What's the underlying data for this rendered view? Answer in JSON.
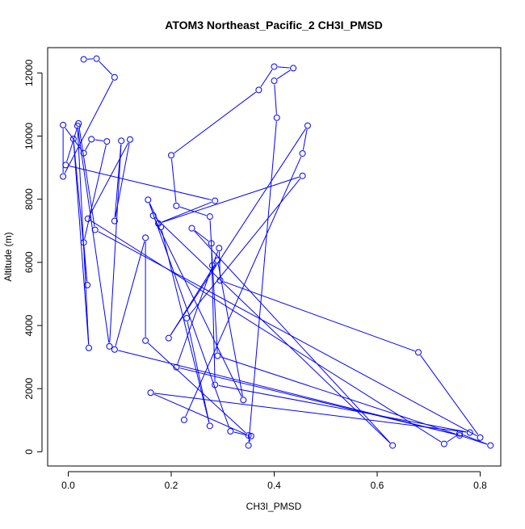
{
  "chart_data": {
    "type": "line",
    "title": "ATOM3 Northeast_Pacific_2 CH3I_PMSD",
    "xlabel": "CH3I_PMSD",
    "ylabel": "Altitude (m)",
    "xlim": [
      -0.04,
      0.84
    ],
    "ylim": [
      -450,
      12800
    ],
    "x_ticks": [
      0.0,
      0.2,
      0.4,
      0.6,
      0.8
    ],
    "x_tick_labels": [
      "0.0",
      "0.2",
      "0.4",
      "0.6",
      "0.8"
    ],
    "y_ticks": [
      0,
      2000,
      4000,
      6000,
      8000,
      10000,
      12000
    ],
    "y_tick_labels": [
      "0",
      "2000",
      "4000",
      "6000",
      "8000",
      "10000",
      "12000"
    ],
    "series": [
      {
        "color": "#0000ff",
        "marker": "open-circle",
        "points": [
          {
            "x": 0.03,
            "y": 12430
          },
          {
            "x": 0.055,
            "y": 12450
          },
          {
            "x": 0.09,
            "y": 11860
          },
          {
            "x": -0.01,
            "y": 8720
          },
          {
            "x": -0.01,
            "y": 10350
          },
          {
            "x": 0.03,
            "y": 9460
          },
          {
            "x": 0.045,
            "y": 9900
          },
          {
            "x": 0.075,
            "y": 9830
          },
          {
            "x": 0.03,
            "y": 6630
          },
          {
            "x": 0.037,
            "y": 5280
          },
          {
            "x": 0.01,
            "y": 9910
          },
          {
            "x": 0.04,
            "y": 3290
          },
          {
            "x": 0.018,
            "y": 10320
          },
          {
            "x": 0.08,
            "y": 3340
          },
          {
            "x": 0.103,
            "y": 9850
          },
          {
            "x": 0.09,
            "y": 7310
          },
          {
            "x": 0.12,
            "y": 9890
          },
          {
            "x": 0.038,
            "y": 7380
          },
          {
            "x": 0.73,
            "y": 250
          },
          {
            "x": 0.76,
            "y": 580
          },
          {
            "x": 0.82,
            "y": 200
          },
          {
            "x": 0.29,
            "y": 3040
          },
          {
            "x": 0.275,
            "y": 7450
          },
          {
            "x": 0.21,
            "y": 7790
          },
          {
            "x": 0.2,
            "y": 9390
          },
          {
            "x": 0.37,
            "y": 11460
          },
          {
            "x": 0.4,
            "y": 12200
          },
          {
            "x": 0.437,
            "y": 12150
          },
          {
            "x": 0.4,
            "y": 11750
          },
          {
            "x": 0.405,
            "y": 10580
          },
          {
            "x": 0.35,
            "y": 200
          },
          {
            "x": 0.355,
            "y": 500
          },
          {
            "x": 0.315,
            "y": 650
          },
          {
            "x": 0.155,
            "y": 7980
          },
          {
            "x": 0.18,
            "y": 7120
          },
          {
            "x": 0.275,
            "y": 820
          },
          {
            "x": 0.23,
            "y": 4230
          },
          {
            "x": 0.455,
            "y": 8740
          },
          {
            "x": 0.175,
            "y": 7230
          },
          {
            "x": 0.285,
            "y": 7950
          },
          {
            "x": -0.005,
            "y": 9080
          },
          {
            "x": 0.02,
            "y": 10400
          },
          {
            "x": 0.052,
            "y": 7030
          },
          {
            "x": 0.8,
            "y": 450
          },
          {
            "x": 0.68,
            "y": 3150
          },
          {
            "x": 0.295,
            "y": 5430
          },
          {
            "x": 0.293,
            "y": 6450
          },
          {
            "x": 0.28,
            "y": 5900
          },
          {
            "x": 0.21,
            "y": 2680
          },
          {
            "x": 0.76,
            "y": 520
          },
          {
            "x": 0.09,
            "y": 3240
          },
          {
            "x": 0.15,
            "y": 6780
          },
          {
            "x": 0.15,
            "y": 3520
          },
          {
            "x": 0.35,
            "y": 520
          },
          {
            "x": 0.16,
            "y": 1870
          },
          {
            "x": 0.78,
            "y": 610
          },
          {
            "x": 0.285,
            "y": 2120
          },
          {
            "x": 0.278,
            "y": 6600
          },
          {
            "x": 0.24,
            "y": 7080
          },
          {
            "x": 0.63,
            "y": 200
          },
          {
            "x": 0.165,
            "y": 7480
          },
          {
            "x": 0.34,
            "y": 1640
          },
          {
            "x": 0.29,
            "y": 6060
          },
          {
            "x": 0.195,
            "y": 3600
          },
          {
            "x": 0.465,
            "y": 10330
          },
          {
            "x": 0.455,
            "y": 9450
          },
          {
            "x": 0.225,
            "y": 1010
          }
        ]
      }
    ]
  }
}
